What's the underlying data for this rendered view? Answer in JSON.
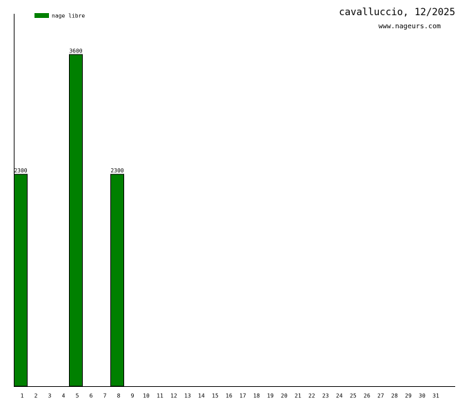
{
  "chart_data": {
    "type": "bar",
    "title": "cavalluccio, 12/2025",
    "subtitle": "www.nageurs.com",
    "categories": [
      "1",
      "2",
      "3",
      "4",
      "5",
      "6",
      "7",
      "8",
      "9",
      "10",
      "11",
      "12",
      "13",
      "14",
      "15",
      "16",
      "17",
      "18",
      "19",
      "20",
      "21",
      "22",
      "23",
      "24",
      "25",
      "26",
      "27",
      "28",
      "29",
      "30",
      "31"
    ],
    "series": [
      {
        "name": "nage libre",
        "color": "#008000",
        "values": [
          2300,
          null,
          null,
          null,
          3600,
          null,
          null,
          2300,
          null,
          null,
          null,
          null,
          null,
          null,
          null,
          null,
          null,
          null,
          null,
          null,
          null,
          null,
          null,
          null,
          null,
          null,
          null,
          null,
          null,
          null,
          null
        ]
      }
    ],
    "ylim": [
      0,
      4000
    ]
  }
}
